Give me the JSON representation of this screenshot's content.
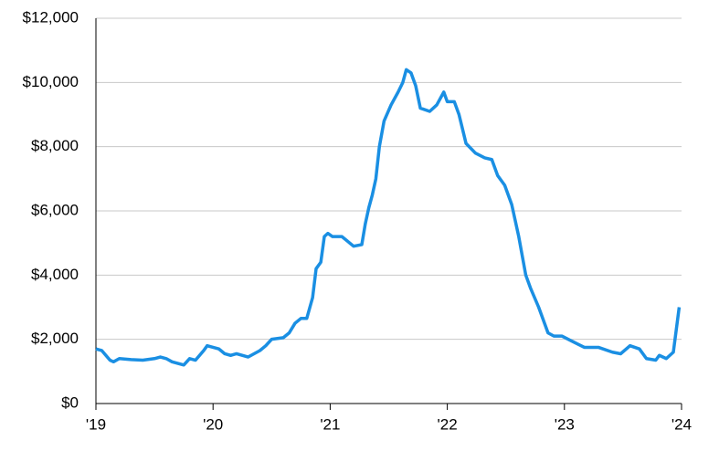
{
  "chart_data": {
    "type": "line",
    "color": "#1a8fe3",
    "grid": true,
    "xlim": [
      2019,
      2024
    ],
    "xticks": [
      {
        "value": 2019,
        "label": "'19"
      },
      {
        "value": 2020,
        "label": "'20"
      },
      {
        "value": 2021,
        "label": "'21"
      },
      {
        "value": 2022,
        "label": "'22"
      },
      {
        "value": 2023,
        "label": "'23"
      },
      {
        "value": 2024,
        "label": "'24"
      }
    ],
    "ylim": [
      0,
      12000
    ],
    "yticks": [
      {
        "value": 0,
        "label": "$0"
      },
      {
        "value": 2000,
        "label": "$2,000"
      },
      {
        "value": 4000,
        "label": "$4,000"
      },
      {
        "value": 6000,
        "label": "$6,000"
      },
      {
        "value": 8000,
        "label": "$8,000"
      },
      {
        "value": 10000,
        "label": "$10,000"
      },
      {
        "value": 12000,
        "label": "$12,000"
      }
    ],
    "x": [
      2019.0,
      2019.05,
      2019.12,
      2019.15,
      2019.2,
      2019.3,
      2019.4,
      2019.5,
      2019.55,
      2019.6,
      2019.65,
      2019.75,
      2019.8,
      2019.85,
      2019.92,
      2019.95,
      2020.0,
      2020.05,
      2020.1,
      2020.15,
      2020.2,
      2020.3,
      2020.4,
      2020.45,
      2020.5,
      2020.6,
      2020.65,
      2020.7,
      2020.75,
      2020.8,
      2020.85,
      2020.88,
      2020.92,
      2020.95,
      2020.98,
      2021.02,
      2021.1,
      2021.2,
      2021.27,
      2021.3,
      2021.33,
      2021.36,
      2021.39,
      2021.42,
      2021.46,
      2021.52,
      2021.58,
      2021.62,
      2021.65,
      2021.69,
      2021.73,
      2021.77,
      2021.85,
      2021.91,
      2021.97,
      2022.0,
      2022.06,
      2022.1,
      2022.16,
      2022.24,
      2022.32,
      2022.38,
      2022.43,
      2022.49,
      2022.55,
      2022.61,
      2022.67,
      2022.71,
      2022.78,
      2022.86,
      2022.91,
      2022.98,
      2023.06,
      2023.17,
      2023.29,
      2023.41,
      2023.48,
      2023.56,
      2023.64,
      2023.7,
      2023.78,
      2023.81,
      2023.87,
      2023.93,
      2023.98
    ],
    "values": [
      1700,
      1650,
      1350,
      1300,
      1400,
      1370,
      1350,
      1400,
      1450,
      1400,
      1300,
      1200,
      1400,
      1350,
      1650,
      1800,
      1750,
      1700,
      1550,
      1500,
      1550,
      1450,
      1650,
      1800,
      2000,
      2050,
      2200,
      2500,
      2650,
      2650,
      3300,
      4200,
      4400,
      5200,
      5300,
      5200,
      5200,
      4900,
      4950,
      5600,
      6100,
      6500,
      7000,
      8000,
      8800,
      9300,
      9700,
      10000,
      10400,
      10300,
      9900,
      9200,
      9100,
      9300,
      9700,
      9400,
      9400,
      9000,
      8100,
      7800,
      7650,
      7600,
      7100,
      6800,
      6200,
      5200,
      4000,
      3600,
      3000,
      2200,
      2100,
      2100,
      1950,
      1750,
      1750,
      1600,
      1550,
      1800,
      1700,
      1400,
      1350,
      1500,
      1400,
      1600,
      3000
    ]
  }
}
